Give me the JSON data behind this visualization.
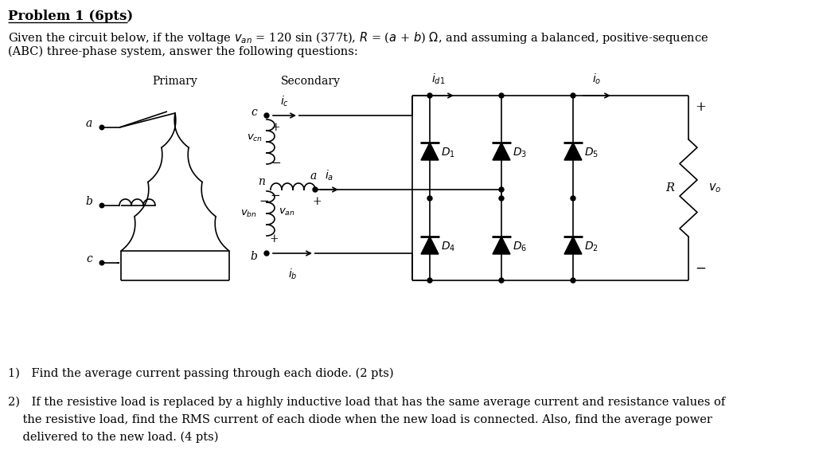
{
  "bg_color": "#ffffff",
  "text_color": "#000000",
  "title": "Problem 1 (6pts)",
  "body_line1": "Given the circuit below, if the voltage $v_{an}$ = 120 sin (377t), $R$ = ($a$ + $b$) $\\Omega$, and assuming a balanced, positive-sequence",
  "body_line2": "(ABC) three-phase system, answer the following questions:",
  "q1": "1) Find the average current passing through each diode. (2 pts)",
  "q2a": "2) If the resistive load is replaced by a highly inductive load that has the same average current and resistance values of",
  "q2b": "    the resistive load, find the RMS current of each diode when the new load is connected. Also, find the average power",
  "q2c": "    delivered to the new load. (4 pts)",
  "label_Primary": "Primary",
  "label_Secondary": "Secondary"
}
